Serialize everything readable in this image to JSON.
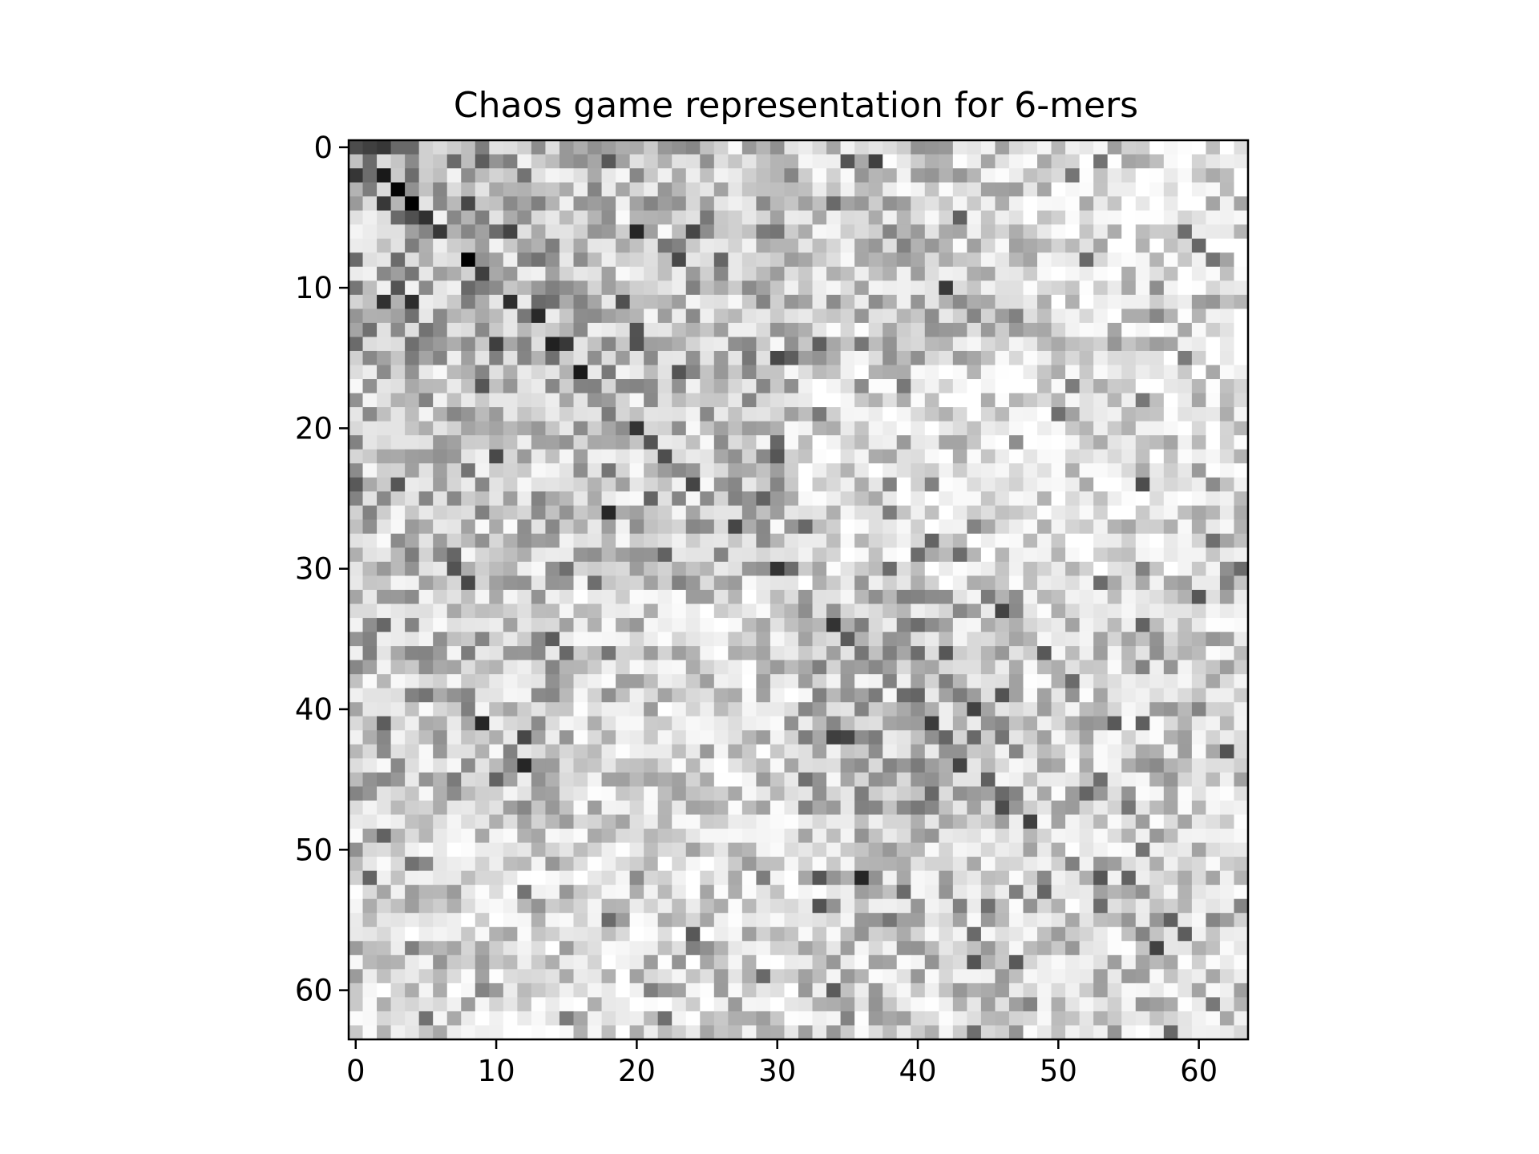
{
  "chart_data": {
    "type": "heatmap",
    "title": "Chaos game representation for 6-mers",
    "xlabel": "",
    "ylabel": "",
    "rows": 64,
    "cols": 64,
    "xlim": [
      -0.5,
      63.5
    ],
    "ylim": [
      63.5,
      -0.5
    ],
    "x_ticks": [
      0,
      10,
      20,
      30,
      40,
      50,
      60
    ],
    "x_tick_labels": [
      "0",
      "10",
      "20",
      "30",
      "40",
      "50",
      "60"
    ],
    "y_ticks": [
      0,
      10,
      20,
      30,
      40,
      50,
      60
    ],
    "y_tick_labels": [
      "0",
      "10",
      "20",
      "30",
      "40",
      "50",
      "60"
    ],
    "colormap": "Greys",
    "value_range": [
      0,
      1
    ],
    "grid": false,
    "legend": "none",
    "highlighted_cells": [
      {
        "row": 0,
        "col": 1,
        "value": 0.75
      },
      {
        "row": 2,
        "col": 2,
        "value": 0.9
      },
      {
        "row": 4,
        "col": 4,
        "value": 1.0
      },
      {
        "row": 8,
        "col": 8,
        "value": 1.0
      },
      {
        "row": 16,
        "col": 16,
        "value": 0.9
      },
      {
        "row": 26,
        "col": 18,
        "value": 0.85
      },
      {
        "row": 20,
        "col": 20,
        "value": 0.8
      },
      {
        "row": 30,
        "col": 30,
        "value": 0.8
      },
      {
        "row": 34,
        "col": 34,
        "value": 0.8
      },
      {
        "row": 41,
        "col": 9,
        "value": 0.85
      },
      {
        "row": 44,
        "col": 12,
        "value": 0.85
      },
      {
        "row": 52,
        "col": 36,
        "value": 0.85
      },
      {
        "row": 48,
        "col": 48,
        "value": 0.75
      },
      {
        "row": 24,
        "col": 56,
        "value": 0.7
      },
      {
        "row": 6,
        "col": 20,
        "value": 0.85
      },
      {
        "row": 1,
        "col": 37,
        "value": 0.75
      }
    ]
  }
}
